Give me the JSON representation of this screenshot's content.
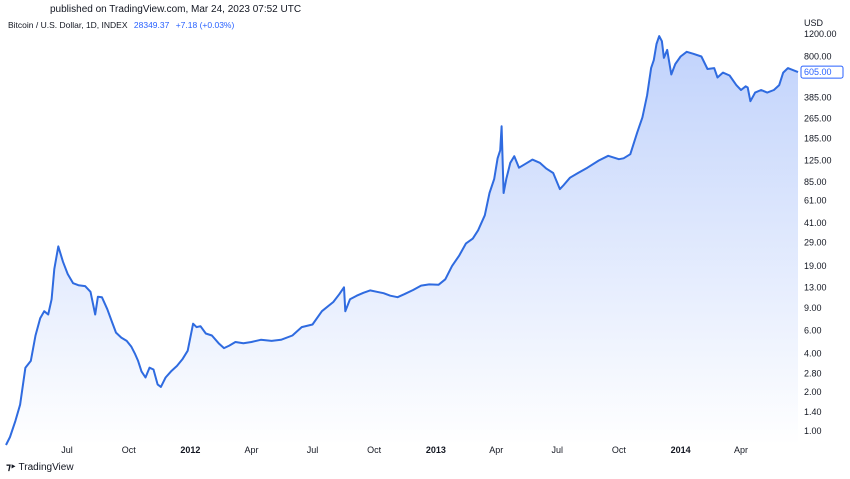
{
  "header": {
    "published": "published on TradingView.com, Mar 24, 2023 07:52 UTC"
  },
  "legend": {
    "symbol": "Bitcoin / U.S. Dollar, 1D, INDEX",
    "price": "28349.37",
    "change": "+7.18 (+0.03%)"
  },
  "footer": {
    "brand": "TradingView"
  },
  "chart_data": {
    "type": "area",
    "scale": "log",
    "currency": "USD",
    "line_color": "#2f6be0",
    "fill_color_top": "#b9cdfb",
    "fill_color_bottom": "#ffffff",
    "last_price_label": "605.00",
    "y_ticks": [
      "1200.00",
      "800.00",
      "605.00",
      "385.00",
      "265.00",
      "185.00",
      "125.00",
      "85.00",
      "61.00",
      "41.00",
      "29.00",
      "19.00",
      "13.00",
      "9.00",
      "6.00",
      "4.00",
      "2.80",
      "2.00",
      "1.40",
      "1.00"
    ],
    "y_tick_values": [
      1200,
      800,
      605,
      385,
      265,
      185,
      125,
      85,
      61,
      41,
      29,
      19,
      13,
      9,
      6,
      4,
      2.8,
      2,
      1.4,
      1
    ],
    "x_ticks": [
      {
        "label": "Jul",
        "date": "2011-07-01",
        "year": false
      },
      {
        "label": "Oct",
        "date": "2011-10-01",
        "year": false
      },
      {
        "label": "2012",
        "date": "2012-01-01",
        "year": true
      },
      {
        "label": "Apr",
        "date": "2012-04-01",
        "year": false
      },
      {
        "label": "Jul",
        "date": "2012-07-01",
        "year": false
      },
      {
        "label": "Oct",
        "date": "2012-10-01",
        "year": false
      },
      {
        "label": "2013",
        "date": "2013-01-01",
        "year": true
      },
      {
        "label": "Apr",
        "date": "2013-04-01",
        "year": false
      },
      {
        "label": "Jul",
        "date": "2013-07-01",
        "year": false
      },
      {
        "label": "Oct",
        "date": "2013-10-01",
        "year": false
      },
      {
        "label": "2014",
        "date": "2014-01-01",
        "year": true
      },
      {
        "label": "Apr",
        "date": "2014-04-01",
        "year": false
      }
    ],
    "x_range": [
      "2011-04-01",
      "2014-06-25"
    ],
    "series": [
      {
        "x": [
          "2011-04-01",
          "2011-04-07",
          "2011-04-15",
          "2011-04-22",
          "2011-04-30",
          "2011-05-08",
          "2011-05-15",
          "2011-05-22",
          "2011-05-28",
          "2011-06-03",
          "2011-06-08",
          "2011-06-12",
          "2011-06-18",
          "2011-06-25",
          "2011-07-02",
          "2011-07-10",
          "2011-07-18",
          "2011-07-28",
          "2011-08-05",
          "2011-08-12",
          "2011-08-16",
          "2011-08-22",
          "2011-08-30",
          "2011-09-06",
          "2011-09-12",
          "2011-09-20",
          "2011-09-28",
          "2011-10-05",
          "2011-10-10",
          "2011-10-15",
          "2011-10-20",
          "2011-10-26",
          "2011-11-01",
          "2011-11-07",
          "2011-11-13",
          "2011-11-18",
          "2011-11-25",
          "2011-12-03",
          "2011-12-12",
          "2011-12-20",
          "2011-12-28",
          "2012-01-05",
          "2012-01-10",
          "2012-01-16",
          "2012-01-24",
          "2012-02-02",
          "2012-02-12",
          "2012-02-20",
          "2012-02-28",
          "2012-03-08",
          "2012-03-20",
          "2012-04-01",
          "2012-04-15",
          "2012-05-01",
          "2012-05-15",
          "2012-06-01",
          "2012-06-15",
          "2012-07-01",
          "2012-07-15",
          "2012-08-01",
          "2012-08-10",
          "2012-08-17",
          "2012-08-19",
          "2012-08-26",
          "2012-09-05",
          "2012-09-15",
          "2012-09-25",
          "2012-10-05",
          "2012-10-15",
          "2012-10-25",
          "2012-11-05",
          "2012-11-15",
          "2012-11-28",
          "2012-12-10",
          "2012-12-22",
          "2013-01-05",
          "2013-01-15",
          "2013-01-25",
          "2013-02-05",
          "2013-02-15",
          "2013-02-25",
          "2013-03-05",
          "2013-03-15",
          "2013-03-22",
          "2013-03-29",
          "2013-04-03",
          "2013-04-07",
          "2013-04-09",
          "2013-04-12",
          "2013-04-16",
          "2013-04-22",
          "2013-04-28",
          "2013-05-05",
          "2013-05-15",
          "2013-05-25",
          "2013-06-05",
          "2013-06-15",
          "2013-06-25",
          "2013-07-05",
          "2013-07-10",
          "2013-07-20",
          "2013-08-01",
          "2013-08-15",
          "2013-09-01",
          "2013-09-15",
          "2013-10-01",
          "2013-10-08",
          "2013-10-18",
          "2013-10-28",
          "2013-11-05",
          "2013-11-12",
          "2013-11-18",
          "2013-11-22",
          "2013-11-26",
          "2013-11-30",
          "2013-12-04",
          "2013-12-07",
          "2013-12-12",
          "2013-12-18",
          "2013-12-24",
          "2014-01-01",
          "2014-01-10",
          "2014-01-20",
          "2014-02-01",
          "2014-02-10",
          "2014-02-20",
          "2014-02-25",
          "2014-03-05",
          "2014-03-15",
          "2014-03-25",
          "2014-04-01",
          "2014-04-08",
          "2014-04-11",
          "2014-04-15",
          "2014-04-22",
          "2014-05-01",
          "2014-05-10",
          "2014-05-20",
          "2014-05-28",
          "2014-06-03",
          "2014-06-10",
          "2014-06-17",
          "2014-06-25"
        ],
        "y": [
          0.78,
          0.9,
          1.2,
          1.6,
          3.1,
          3.5,
          5.5,
          7.5,
          8.5,
          8.0,
          10.5,
          18.0,
          27.0,
          20.5,
          16.5,
          14.0,
          13.5,
          13.3,
          12.0,
          8.0,
          11.0,
          10.9,
          8.8,
          7.0,
          5.8,
          5.3,
          5.0,
          4.5,
          4.0,
          3.5,
          2.9,
          2.6,
          3.1,
          3.0,
          2.3,
          2.2,
          2.6,
          2.9,
          3.2,
          3.6,
          4.2,
          6.8,
          6.4,
          6.5,
          5.7,
          5.5,
          4.8,
          4.4,
          4.6,
          4.9,
          4.8,
          4.9,
          5.1,
          5.0,
          5.1,
          5.5,
          6.4,
          6.7,
          8.5,
          10.0,
          11.5,
          13.0,
          8.5,
          10.5,
          11.2,
          11.8,
          12.3,
          12.0,
          11.7,
          11.2,
          10.9,
          11.5,
          12.4,
          13.4,
          13.7,
          13.6,
          15.0,
          19.0,
          23.0,
          28.5,
          31.0,
          36.0,
          47.0,
          70.0,
          90.0,
          130.0,
          150.0,
          230.0,
          70.0,
          90.0,
          120.0,
          135.0,
          110.0,
          118.0,
          127.0,
          120.0,
          108.0,
          100.0,
          75.0,
          80.0,
          92.0,
          100.0,
          110.0,
          125.0,
          136.0,
          128.0,
          130.0,
          140.0,
          205.0,
          270.0,
          400.0,
          650.0,
          750.0,
          1000.0,
          1150.0,
          1050.0,
          780.0,
          900.0,
          580.0,
          700.0,
          800.0,
          870.0,
          840.0,
          800.0,
          640.0,
          650.0,
          550.0,
          600.0,
          570.0,
          480.0,
          440.0,
          470.0,
          460.0,
          360.0,
          420.0,
          440.0,
          420.0,
          440.0,
          480.0,
          600.0,
          650.0,
          630.0,
          605.0
        ]
      }
    ]
  }
}
